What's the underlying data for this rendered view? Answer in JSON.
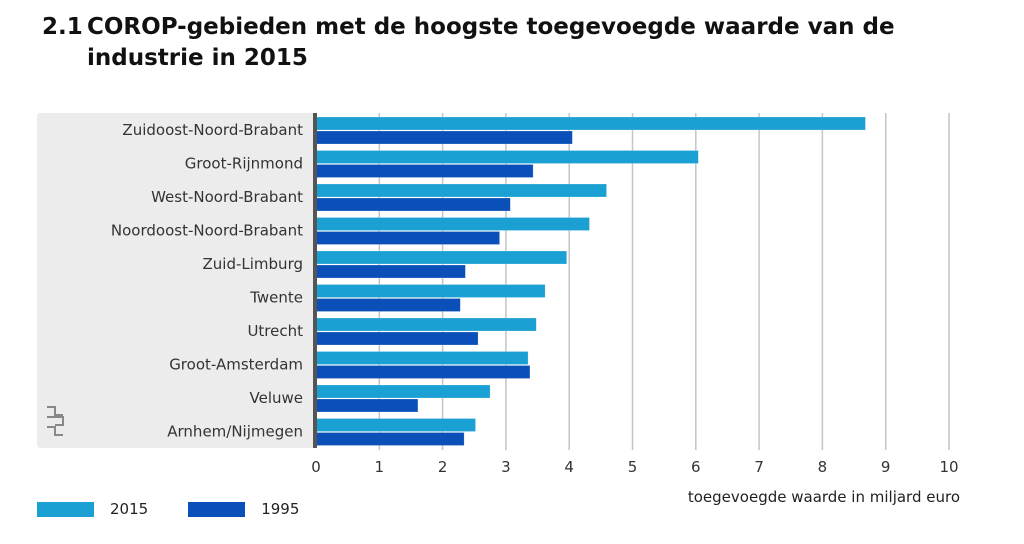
{
  "title_number": "2.1",
  "title_line1": "COROP-gebieden met de hoogste toegevoegde waarde van de",
  "title_line2": "industrie in 2015",
  "chart_data": {
    "type": "bar",
    "orientation": "horizontal",
    "categories": [
      "Zuidoost-Noord-Brabant",
      "Groot-Rijnmond",
      "West-Noord-Brabant",
      "Noordoost-Noord-Brabant",
      "Zuid-Limburg",
      "Twente",
      "Utrecht",
      "Groot-Amsterdam",
      "Veluwe",
      "Arnhem/Nijmegen"
    ],
    "series": [
      {
        "name": "2015",
        "color": "#1ba0d3",
        "values": [
          8.68,
          6.04,
          4.59,
          4.32,
          3.96,
          3.62,
          3.48,
          3.35,
          2.75,
          2.52
        ]
      },
      {
        "name": "1995",
        "color": "#0b50b8",
        "values": [
          4.05,
          3.43,
          3.07,
          2.9,
          2.36,
          2.28,
          2.56,
          3.38,
          1.61,
          2.34
        ]
      }
    ],
    "xlabel": "toegevoegde waarde in miljard euro",
    "xlim": [
      0,
      10
    ],
    "xticks": [
      "0",
      "1",
      "2",
      "3",
      "4",
      "5",
      "6",
      "7",
      "8",
      "9",
      "10"
    ],
    "grid": true,
    "legend": "bottom-left"
  },
  "logo": "cbs"
}
